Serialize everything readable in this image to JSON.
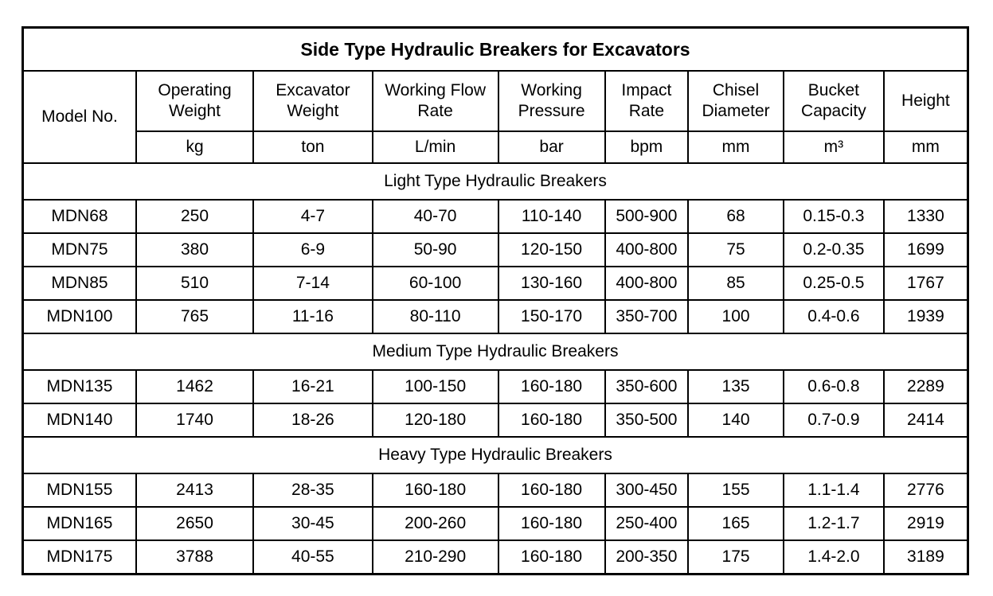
{
  "title": "Side Type Hydraulic Breakers for Excavators",
  "columns": [
    {
      "name": "Model No.",
      "unit": ""
    },
    {
      "name": "Operating Weight",
      "unit": "kg"
    },
    {
      "name": "Excavator Weight",
      "unit": "ton"
    },
    {
      "name": "Working Flow Rate",
      "unit": "L/min"
    },
    {
      "name": "Working Pressure",
      "unit": "bar"
    },
    {
      "name": "Impact Rate",
      "unit": "bpm"
    },
    {
      "name": "Chisel Diameter",
      "unit": "mm"
    },
    {
      "name": "Bucket Capacity",
      "unit": "m³"
    },
    {
      "name": "Height",
      "unit": "mm"
    }
  ],
  "sections": [
    {
      "label": "Light Type Hydraulic Breakers",
      "rows": [
        [
          "MDN68",
          "250",
          "4-7",
          "40-70",
          "110-140",
          "500-900",
          "68",
          "0.15-0.3",
          "1330"
        ],
        [
          "MDN75",
          "380",
          "6-9",
          "50-90",
          "120-150",
          "400-800",
          "75",
          "0.2-0.35",
          "1699"
        ],
        [
          "MDN85",
          "510",
          "7-14",
          "60-100",
          "130-160",
          "400-800",
          "85",
          "0.25-0.5",
          "1767"
        ],
        [
          "MDN100",
          "765",
          "11-16",
          "80-110",
          "150-170",
          "350-700",
          "100",
          "0.4-0.6",
          "1939"
        ]
      ]
    },
    {
      "label": "Medium Type Hydraulic Breakers",
      "rows": [
        [
          "MDN135",
          "1462",
          "16-21",
          "100-150",
          "160-180",
          "350-600",
          "135",
          "0.6-0.8",
          "2289"
        ],
        [
          "MDN140",
          "1740",
          "18-26",
          "120-180",
          "160-180",
          "350-500",
          "140",
          "0.7-0.9",
          "2414"
        ]
      ]
    },
    {
      "label": "Heavy Type Hydraulic Breakers",
      "rows": [
        [
          "MDN155",
          "2413",
          "28-35",
          "160-180",
          "160-180",
          "300-450",
          "155",
          "1.1-1.4",
          "2776"
        ],
        [
          "MDN165",
          "2650",
          "30-45",
          "200-260",
          "160-180",
          "250-400",
          "165",
          "1.2-1.7",
          "2919"
        ],
        [
          "MDN175",
          "3788",
          "40-55",
          "210-290",
          "160-180",
          "200-350",
          "175",
          "1.4-2.0",
          "3189"
        ]
      ]
    }
  ],
  "colors": {
    "border": "#000000",
    "text": "#000000",
    "background": "#ffffff"
  }
}
